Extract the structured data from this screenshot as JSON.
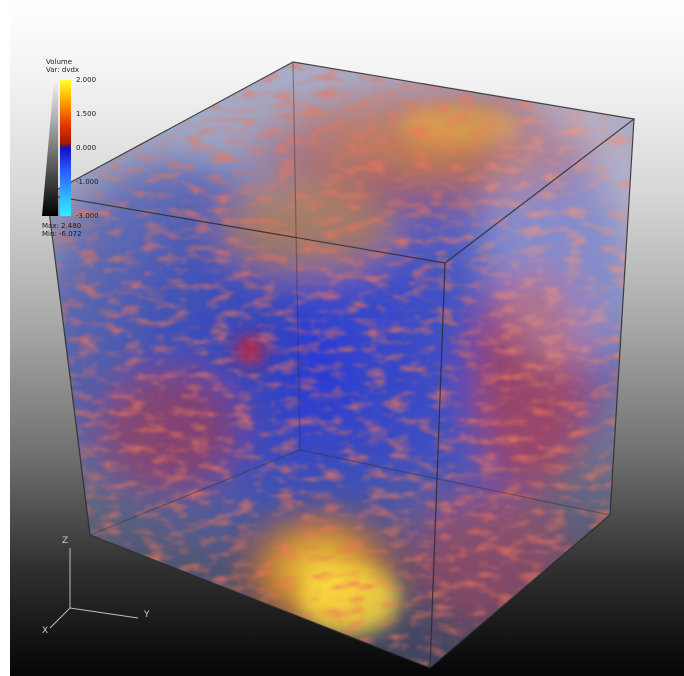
{
  "legend": {
    "title_line1": "Volume",
    "title_line2": "Var: dvdx",
    "ticks": [
      "2.000",
      "1.500",
      "0.000",
      "-1.000",
      "-3.000"
    ],
    "max_label": "Max: 2.480",
    "min_label": "Min: -6.072",
    "colormap": [
      "#ffff33",
      "#ffb000",
      "#e83a00",
      "#1010c0",
      "#2a58ff",
      "#30f0ff"
    ]
  },
  "axes": {
    "x_label": "X",
    "y_label": "Y",
    "z_label": "Z"
  },
  "colors": {
    "background_top": "#ffffff",
    "background_bottom": "#050505",
    "volume_blue": "#2a3cc8",
    "volume_red": "#d0301c",
    "volume_yellow": "#f0c020",
    "box_edge": "#2a2a2a"
  }
}
